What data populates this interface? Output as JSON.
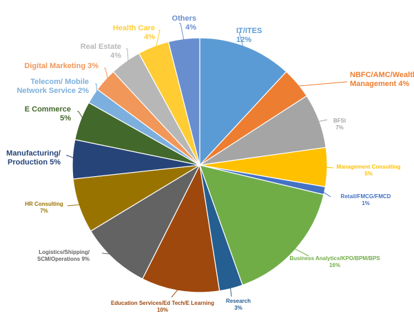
{
  "chart_data": {
    "type": "pie",
    "slices": [
      {
        "name": "IT/ITES",
        "value": 12,
        "pct_label": "12%",
        "color": "#5B9BD5"
      },
      {
        "name": "NBFC/AMC/Wealth Management",
        "lines": [
          "NBFC/AMC/Wealth",
          "Management  4%"
        ],
        "value": 4,
        "pct_label": "4%",
        "color": "#ED7D31"
      },
      {
        "name": "BFSI",
        "value": 7,
        "pct_label": "7%",
        "color": "#A5A5A5"
      },
      {
        "name": "Management Consulting",
        "value": 5,
        "pct_label": "5%",
        "color": "#FFC000"
      },
      {
        "name": "Retail/FMCG/FMCD",
        "value": 1,
        "pct_label": "1%",
        "color": "#4472C4"
      },
      {
        "name": "Business Analytics/KPO/BPM/BPS",
        "value": 16,
        "pct_label": "16%",
        "color": "#70AD47"
      },
      {
        "name": "Research",
        "value": 3,
        "pct_label": "3%",
        "color": "#255E91"
      },
      {
        "name": "Education Services/Ed Tech/E Learning",
        "value": 10,
        "pct_label": "10%",
        "color": "#9E480E"
      },
      {
        "name": "Logistics/Shipping/SCM/Operations",
        "lines": [
          "Logistics/Shipping/",
          "SCM/Operations  9%"
        ],
        "value": 9,
        "pct_label": "9%",
        "color": "#636363"
      },
      {
        "name": "HR Consulting",
        "value": 7,
        "pct_label": "7%",
        "color": "#997300"
      },
      {
        "name": "Manufacturing/Production",
        "lines": [
          "Manufacturing/",
          "Production  5%"
        ],
        "value": 5,
        "pct_label": "5%",
        "color": "#264478"
      },
      {
        "name": "E Commerce",
        "value": 5,
        "pct_label": "5%",
        "color": "#43682B"
      },
      {
        "name": "Telecom/ Mobile Network Service",
        "lines": [
          "Telecom/ Mobile",
          "Network Service 2%"
        ],
        "value": 2,
        "pct_label": "2%",
        "color": "#7CAFDD"
      },
      {
        "name": "Digital Marketing",
        "lines": [
          "Digital Marketing 3%"
        ],
        "value": 3,
        "pct_label": "3%",
        "color": "#F1975A"
      },
      {
        "name": "Real Estate",
        "value": 4,
        "pct_label": "4%",
        "color": "#B7B7B7"
      },
      {
        "name": "Health Care",
        "value": 4,
        "pct_label": "4%",
        "color": "#FFCD33"
      },
      {
        "name": "Others",
        "value": 4,
        "pct_label": "4%",
        "color": "#698ED0"
      }
    ]
  }
}
